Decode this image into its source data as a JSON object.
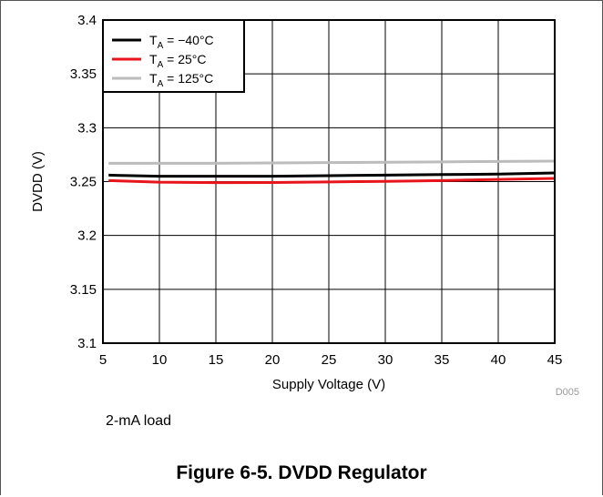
{
  "chart_data": {
    "type": "line",
    "xlabel": "Supply Voltage (V)",
    "ylabel": "DVDD (V)",
    "xlim": [
      5,
      45
    ],
    "ylim": [
      3.1,
      3.4
    ],
    "xticks": [
      "5",
      "10",
      "15",
      "20",
      "25",
      "30",
      "35",
      "40",
      "45"
    ],
    "yticks": [
      "3.4",
      "3.35",
      "3.3",
      "3.25",
      "3.2",
      "3.15",
      "3.1"
    ],
    "grid": true,
    "legend_position": "top-left",
    "series": [
      {
        "name_main": "T",
        "name_sub": "A",
        "name_rest": " = −40°C",
        "color": "#000000",
        "x": [
          5.5,
          10,
          15,
          20,
          25,
          30,
          35,
          40,
          45
        ],
        "y": [
          3.256,
          3.255,
          3.255,
          3.255,
          3.2555,
          3.256,
          3.2565,
          3.257,
          3.258
        ]
      },
      {
        "name_main": "T",
        "name_sub": "A",
        "name_rest": " = 25°C",
        "color": "#e8141b",
        "x": [
          5.5,
          10,
          15,
          20,
          25,
          30,
          35,
          40,
          45
        ],
        "y": [
          3.251,
          3.2495,
          3.249,
          3.2492,
          3.2497,
          3.2502,
          3.251,
          3.252,
          3.253
        ]
      },
      {
        "name_main": "T",
        "name_sub": "A",
        "name_rest": " = 125°C",
        "color": "#bcbcbc",
        "x": [
          5.5,
          10,
          15,
          20,
          25,
          30,
          35,
          40,
          45
        ],
        "y": [
          3.267,
          3.267,
          3.267,
          3.2673,
          3.2676,
          3.268,
          3.2683,
          3.2687,
          3.269
        ]
      }
    ],
    "code": "D005"
  },
  "note": "2-mA load",
  "caption": "Figure 6-5. DVDD Regulator"
}
